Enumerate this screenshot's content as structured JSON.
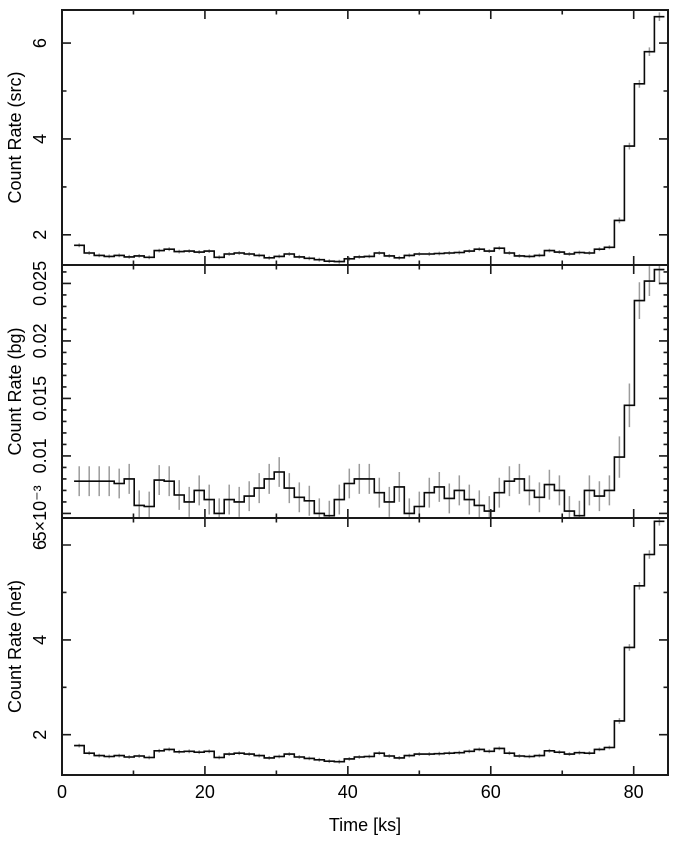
{
  "figure": {
    "background": "#ffffff",
    "colors": {
      "data_line": "#0a0a0a",
      "error_bar": "#9c9c9c",
      "axis": "#1a1a1a",
      "text": "#000000"
    }
  },
  "chart_data": {
    "type": "line",
    "subtype": "multi-panel-histogram-lightcurve-with-errorbars",
    "x_label": "Time [ks]",
    "x_axis": {
      "min": 0,
      "max": 84.8,
      "major_ticks": [
        0,
        20,
        40,
        60,
        80
      ],
      "major_tick_labels": [
        "0",
        "20",
        "40",
        "60",
        "80"
      ],
      "minor_tick_step": 10
    },
    "bin_width": 1.4,
    "bin_start": 1.7,
    "x_bin_centers": [
      2.4,
      3.8,
      5.2,
      6.6,
      8.0,
      9.4,
      10.8,
      12.2,
      13.6,
      15.0,
      16.4,
      17.8,
      19.2,
      20.6,
      22.0,
      23.4,
      24.8,
      26.2,
      27.6,
      29.0,
      30.4,
      31.8,
      33.2,
      34.6,
      36.0,
      37.4,
      38.8,
      40.2,
      41.6,
      43.0,
      44.4,
      45.8,
      47.2,
      48.6,
      50.0,
      51.4,
      52.8,
      54.2,
      55.6,
      57.0,
      58.4,
      59.8,
      61.2,
      62.6,
      64.0,
      65.4,
      66.8,
      68.2,
      69.6,
      71.0,
      72.4,
      73.8,
      75.2,
      76.6,
      78.0,
      79.4,
      80.8,
      82.2,
      83.6
    ],
    "panels": [
      {
        "name": "src",
        "ylabel": "Count Rate (src)",
        "ylim": [
          1.37,
          6.69
        ],
        "yticks": [
          {
            "v": 2,
            "label": "2"
          },
          {
            "v": 4,
            "label": "4"
          },
          {
            "v": 6,
            "label": "6"
          }
        ],
        "minor_step": 1,
        "values": [
          1.78,
          1.62,
          1.57,
          1.55,
          1.57,
          1.54,
          1.56,
          1.53,
          1.67,
          1.7,
          1.65,
          1.66,
          1.64,
          1.66,
          1.53,
          1.6,
          1.62,
          1.6,
          1.57,
          1.52,
          1.55,
          1.6,
          1.54,
          1.51,
          1.48,
          1.45,
          1.44,
          1.5,
          1.54,
          1.55,
          1.62,
          1.56,
          1.52,
          1.57,
          1.6,
          1.6,
          1.61,
          1.62,
          1.63,
          1.66,
          1.7,
          1.66,
          1.72,
          1.62,
          1.56,
          1.55,
          1.57,
          1.67,
          1.64,
          1.6,
          1.63,
          1.62,
          1.7,
          1.74,
          2.3,
          3.85,
          5.15,
          5.82,
          6.55
        ],
        "yerr": [
          0.04,
          0.04,
          0.04,
          0.04,
          0.04,
          0.04,
          0.04,
          0.04,
          0.04,
          0.04,
          0.04,
          0.04,
          0.04,
          0.04,
          0.04,
          0.04,
          0.04,
          0.04,
          0.04,
          0.04,
          0.04,
          0.04,
          0.04,
          0.04,
          0.04,
          0.04,
          0.04,
          0.04,
          0.04,
          0.04,
          0.04,
          0.04,
          0.04,
          0.04,
          0.04,
          0.04,
          0.04,
          0.04,
          0.04,
          0.04,
          0.04,
          0.04,
          0.04,
          0.04,
          0.04,
          0.04,
          0.04,
          0.04,
          0.04,
          0.04,
          0.04,
          0.04,
          0.04,
          0.04,
          0.06,
          0.07,
          0.08,
          0.09,
          0.09
        ]
      },
      {
        "name": "bg",
        "ylabel": "Count Rate (bg)",
        "ylim": [
          0.0046,
          0.0266
        ],
        "yticks": [
          {
            "v": 0.005,
            "label": "5×10⁻³"
          },
          {
            "v": 0.01,
            "label": "0.01"
          },
          {
            "v": 0.015,
            "label": "0.015"
          },
          {
            "v": 0.02,
            "label": "0.02"
          },
          {
            "v": 0.025,
            "label": "0.025"
          }
        ],
        "minor_step": 0.001,
        "values": [
          0.0078,
          0.0078,
          0.0078,
          0.0078,
          0.0076,
          0.008,
          0.0057,
          0.0056,
          0.0079,
          0.0078,
          0.0066,
          0.006,
          0.007,
          0.0062,
          0.005,
          0.0062,
          0.006,
          0.0065,
          0.0072,
          0.008,
          0.0086,
          0.0072,
          0.0064,
          0.0061,
          0.005,
          0.0048,
          0.0062,
          0.0076,
          0.008,
          0.008,
          0.0068,
          0.006,
          0.0073,
          0.005,
          0.0056,
          0.0068,
          0.0073,
          0.0063,
          0.007,
          0.0062,
          0.0057,
          0.0052,
          0.0068,
          0.0078,
          0.008,
          0.007,
          0.0064,
          0.0075,
          0.007,
          0.0052,
          0.0048,
          0.007,
          0.0065,
          0.007,
          0.0099,
          0.0144,
          0.0235,
          0.0252,
          0.0262
        ],
        "yerr": [
          0.0013,
          0.0013,
          0.0013,
          0.0013,
          0.0013,
          0.0013,
          0.0013,
          0.0013,
          0.0013,
          0.0013,
          0.0013,
          0.0013,
          0.0013,
          0.0013,
          0.0013,
          0.0013,
          0.0013,
          0.0013,
          0.0013,
          0.0013,
          0.0013,
          0.0013,
          0.0013,
          0.0013,
          0.0013,
          0.0013,
          0.0013,
          0.0013,
          0.0013,
          0.0013,
          0.0013,
          0.0013,
          0.0013,
          0.0013,
          0.0013,
          0.0013,
          0.0013,
          0.0013,
          0.0013,
          0.0013,
          0.0013,
          0.0013,
          0.0013,
          0.0013,
          0.0013,
          0.0013,
          0.0013,
          0.0013,
          0.0013,
          0.0013,
          0.0013,
          0.0013,
          0.0013,
          0.0013,
          0.0018,
          0.0019,
          0.0016,
          0.0013,
          0.0013
        ]
      },
      {
        "name": "net",
        "ylabel": "Count Rate (net)",
        "ylim": [
          1.15,
          6.57
        ],
        "yticks": [
          {
            "v": 2,
            "label": "2"
          },
          {
            "v": 4,
            "label": "4"
          },
          {
            "v": 6,
            "label": "6"
          }
        ],
        "minor_step": 1,
        "values": [
          1.77,
          1.61,
          1.56,
          1.54,
          1.56,
          1.53,
          1.55,
          1.52,
          1.66,
          1.69,
          1.64,
          1.65,
          1.63,
          1.65,
          1.52,
          1.59,
          1.61,
          1.59,
          1.56,
          1.51,
          1.54,
          1.59,
          1.53,
          1.5,
          1.47,
          1.44,
          1.43,
          1.49,
          1.53,
          1.54,
          1.61,
          1.55,
          1.51,
          1.56,
          1.59,
          1.59,
          1.6,
          1.61,
          1.62,
          1.65,
          1.69,
          1.65,
          1.71,
          1.61,
          1.55,
          1.54,
          1.56,
          1.66,
          1.63,
          1.59,
          1.62,
          1.61,
          1.69,
          1.73,
          2.29,
          3.84,
          5.14,
          5.8,
          6.5
        ],
        "yerr": [
          0.04,
          0.04,
          0.04,
          0.04,
          0.04,
          0.04,
          0.04,
          0.04,
          0.04,
          0.04,
          0.04,
          0.04,
          0.04,
          0.04,
          0.04,
          0.04,
          0.04,
          0.04,
          0.04,
          0.04,
          0.04,
          0.04,
          0.04,
          0.04,
          0.04,
          0.04,
          0.04,
          0.04,
          0.04,
          0.04,
          0.04,
          0.04,
          0.04,
          0.04,
          0.04,
          0.04,
          0.04,
          0.04,
          0.04,
          0.04,
          0.04,
          0.04,
          0.04,
          0.04,
          0.04,
          0.04,
          0.04,
          0.04,
          0.04,
          0.04,
          0.04,
          0.04,
          0.04,
          0.04,
          0.06,
          0.07,
          0.08,
          0.09,
          0.09
        ]
      }
    ],
    "layout_hints": {
      "grid": false,
      "legend": "none",
      "ticks": "inward-all-sides",
      "ytick_labels_rotated": true
    }
  }
}
